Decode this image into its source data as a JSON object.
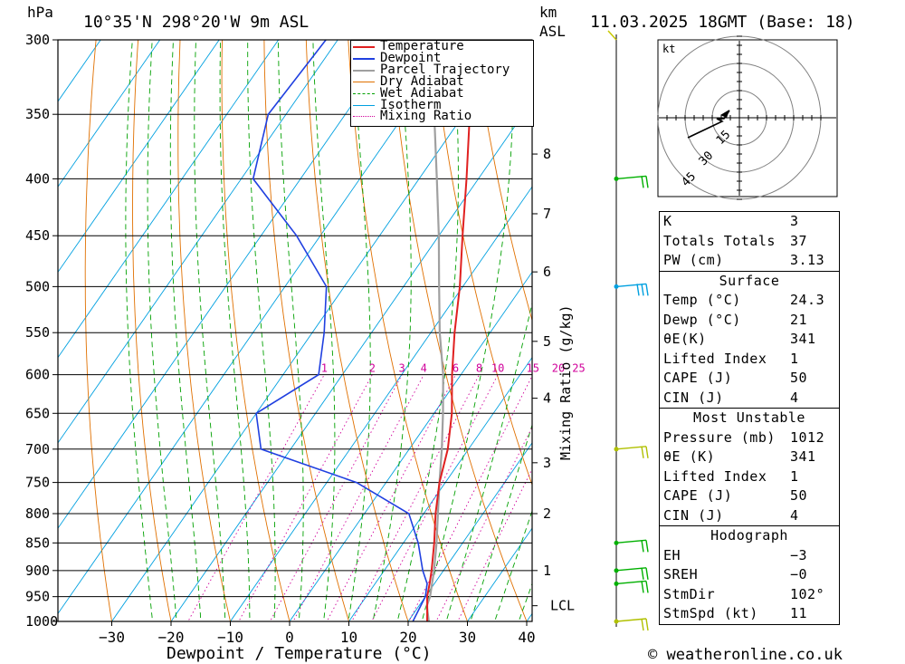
{
  "header": {
    "hpa": "hPa",
    "location": "10°35'N 298°20'W 9m ASL",
    "km": "km",
    "asl": "ASL",
    "datetime": "11.03.2025 18GMT (Base: 18)"
  },
  "footer": "© weatheronline.co.uk",
  "legend": [
    "Temperature",
    "Dewpoint",
    "Parcel Trajectory",
    "Dry Adiabat",
    "Wet Adiabat",
    "Isotherm",
    "Mixing Ratio"
  ],
  "colors": {
    "temperature": "#e02020",
    "dewpoint": "#2040e0",
    "parcel": "#a0a0a0",
    "dry_adiabat": "#e07000",
    "wet_adiabat": "#00a000",
    "isotherm": "#00a0e0",
    "mixing_ratio": "#d0009a"
  },
  "chart_data": {
    "type": "line",
    "title": "Skew-T log-P diagram",
    "xlabel": "Dewpoint / Temperature (°C)",
    "ylabel": "hPa",
    "ylabel_right": "Mixing Ratio (g/kg)",
    "x_ticks": [
      -30,
      -20,
      -10,
      0,
      10,
      20,
      30,
      40
    ],
    "pressure_levels": [
      300,
      350,
      400,
      450,
      500,
      550,
      600,
      650,
      700,
      750,
      800,
      850,
      900,
      950,
      1000
    ],
    "km_ticks": [
      {
        "label": "8",
        "p": 380
      },
      {
        "label": "7",
        "p": 430
      },
      {
        "label": "6",
        "p": 485
      },
      {
        "label": "5",
        "p": 560
      },
      {
        "label": "4",
        "p": 630
      },
      {
        "label": "3",
        "p": 720
      },
      {
        "label": "2",
        "p": 800
      },
      {
        "label": "1",
        "p": 900
      },
      {
        "label": "LCL",
        "p": 968
      }
    ],
    "mixing_ratio_labels": [
      "1",
      "2",
      "3",
      "4",
      "6",
      "8",
      "10",
      "15",
      "20",
      "25"
    ],
    "series": [
      {
        "name": "Temperature",
        "points": [
          [
            1012,
            24.3
          ],
          [
            1000,
            23.2
          ],
          [
            970,
            21.5
          ],
          [
            950,
            20.3
          ],
          [
            925,
            19.2
          ],
          [
            900,
            18
          ],
          [
            850,
            15.2
          ],
          [
            800,
            12
          ],
          [
            750,
            9
          ],
          [
            700,
            6.5
          ],
          [
            650,
            3
          ],
          [
            600,
            -1.5
          ],
          [
            550,
            -6
          ],
          [
            500,
            -10.5
          ],
          [
            450,
            -16
          ],
          [
            400,
            -22
          ],
          [
            350,
            -29
          ],
          [
            300,
            -37
          ]
        ]
      },
      {
        "name": "Dewpoint",
        "points": [
          [
            1012,
            21
          ],
          [
            1000,
            20.8
          ],
          [
            950,
            20
          ],
          [
            925,
            18.8
          ],
          [
            900,
            16.5
          ],
          [
            850,
            12.5
          ],
          [
            800,
            7.5
          ],
          [
            750,
            -5
          ],
          [
            700,
            -25
          ],
          [
            650,
            -30
          ],
          [
            600,
            -24
          ],
          [
            550,
            -28
          ],
          [
            500,
            -33
          ],
          [
            450,
            -44
          ],
          [
            400,
            -58
          ],
          [
            350,
            -63
          ],
          [
            300,
            -62
          ]
        ]
      },
      {
        "name": "Parcel Trajectory",
        "points": [
          [
            1012,
            24.3
          ],
          [
            968,
            21.3
          ],
          [
            950,
            20.8
          ],
          [
            900,
            18.4
          ],
          [
            850,
            15.6
          ],
          [
            800,
            12.4
          ],
          [
            750,
            9
          ],
          [
            700,
            5.5
          ],
          [
            650,
            1.5
          ],
          [
            600,
            -3
          ],
          [
            550,
            -8.5
          ],
          [
            500,
            -14
          ],
          [
            450,
            -20
          ],
          [
            400,
            -27
          ],
          [
            350,
            -35
          ],
          [
            300,
            -44
          ]
        ]
      }
    ],
    "wind_barbs_pressure": [
      400,
      500,
      700,
      850,
      900,
      925,
      1000
    ]
  },
  "hodograph": {
    "unit": "kt",
    "rings": [
      "15",
      "30",
      "45"
    ]
  },
  "indices": [
    {
      "label": "K",
      "value": "3"
    },
    {
      "label": "Totals Totals",
      "value": "37"
    },
    {
      "label": "PW (cm)",
      "value": "3.13"
    }
  ],
  "surface": {
    "title": "Surface",
    "rows": [
      {
        "label": "Temp (°C)",
        "value": "24.3"
      },
      {
        "label": "Dewp (°C)",
        "value": "21"
      },
      {
        "label": "θE(K)",
        "value": "341"
      },
      {
        "label": "Lifted Index",
        "value": "1"
      },
      {
        "label": "CAPE (J)",
        "value": "50"
      },
      {
        "label": "CIN (J)",
        "value": "4"
      }
    ]
  },
  "most_unstable": {
    "title": "Most Unstable",
    "rows": [
      {
        "label": "Pressure (mb)",
        "value": "1012"
      },
      {
        "label": "θE (K)",
        "value": "341"
      },
      {
        "label": "Lifted Index",
        "value": "1"
      },
      {
        "label": "CAPE (J)",
        "value": "50"
      },
      {
        "label": "CIN (J)",
        "value": "4"
      }
    ]
  },
  "hodograph_table": {
    "title": "Hodograph",
    "rows": [
      {
        "label": "EH",
        "value": "-3"
      },
      {
        "label": "SREH",
        "value": "-0"
      },
      {
        "label": "StmDir",
        "value": "102°"
      },
      {
        "label": "StmSpd (kt)",
        "value": "11"
      }
    ]
  }
}
